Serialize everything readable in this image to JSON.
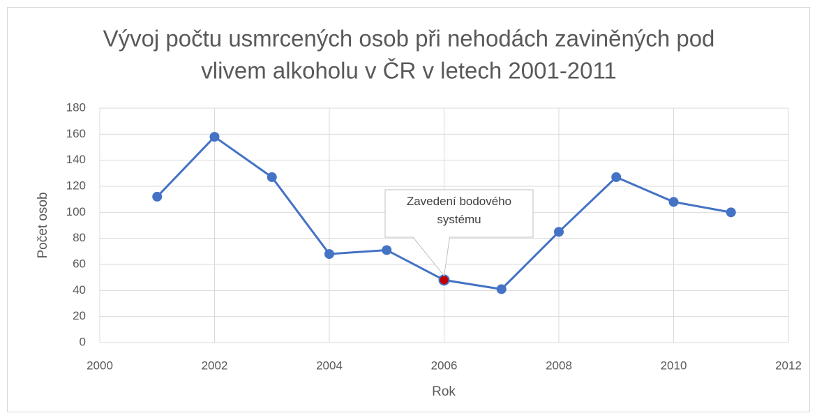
{
  "chart_data": {
    "type": "line",
    "title": "Vývoj počtu usmrcených osob při nehodách zaviněných pod vlivem alkoholu v ČR v letech 2001-2011",
    "x_label": "Rok",
    "y_label": "Počet osob",
    "x": [
      2001,
      2002,
      2003,
      2004,
      2005,
      2006,
      2007,
      2008,
      2009,
      2010,
      2011
    ],
    "series": [
      {
        "name": "Počet osob",
        "color": "#4472c4",
        "values": [
          112,
          158,
          127,
          68,
          71,
          48,
          41,
          85,
          127,
          108,
          100
        ]
      }
    ],
    "xlim": [
      2000,
      2012
    ],
    "xticks": [
      2000,
      2002,
      2004,
      2006,
      2008,
      2010,
      2012
    ],
    "ylim": [
      0,
      180
    ],
    "yticks": [
      0,
      20,
      40,
      60,
      80,
      100,
      120,
      140,
      160,
      180
    ],
    "grid": true,
    "legend": false,
    "annotation": {
      "text": "Zavedení bodového systému",
      "x": 2006,
      "color": "#c00000"
    }
  }
}
